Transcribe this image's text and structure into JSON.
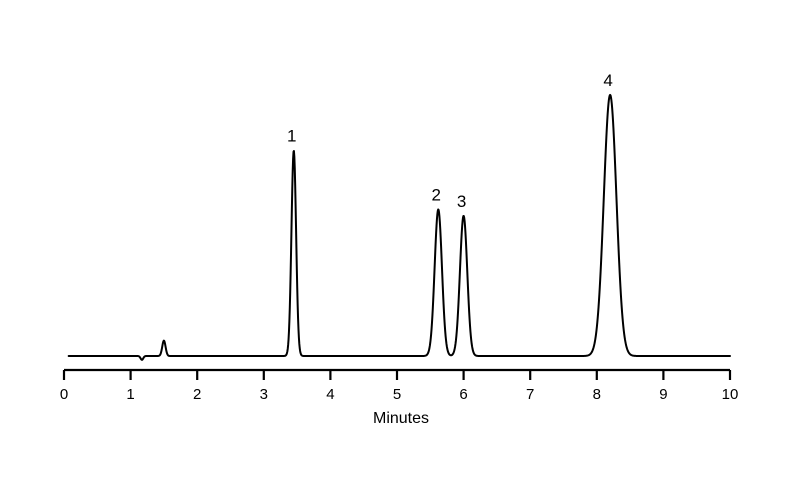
{
  "chart_data": {
    "type": "line",
    "title": "",
    "xlabel": "Minutes",
    "ylabel": "",
    "xlim": [
      0,
      10
    ],
    "xticks": [
      "0",
      "1",
      "2",
      "3",
      "4",
      "5",
      "6",
      "7",
      "8",
      "9",
      "10"
    ],
    "grid": false,
    "baseline": 0,
    "trace_start": 0.07,
    "trace_end": 10,
    "disturbances": [
      {
        "time": 1.17,
        "height": -0.018,
        "width": 0.02
      },
      {
        "time": 1.5,
        "height": 0.072,
        "width": 0.025
      }
    ],
    "peaks": [
      {
        "label": "1",
        "time": 3.45,
        "height": 0.96,
        "width": 0.035
      },
      {
        "label": "2",
        "time": 5.62,
        "height": 0.685,
        "width": 0.055
      },
      {
        "label": "3",
        "time": 6.0,
        "height": 0.655,
        "width": 0.055
      },
      {
        "label": "4",
        "time": 8.2,
        "height": 1.22,
        "width": 0.095
      }
    ]
  }
}
